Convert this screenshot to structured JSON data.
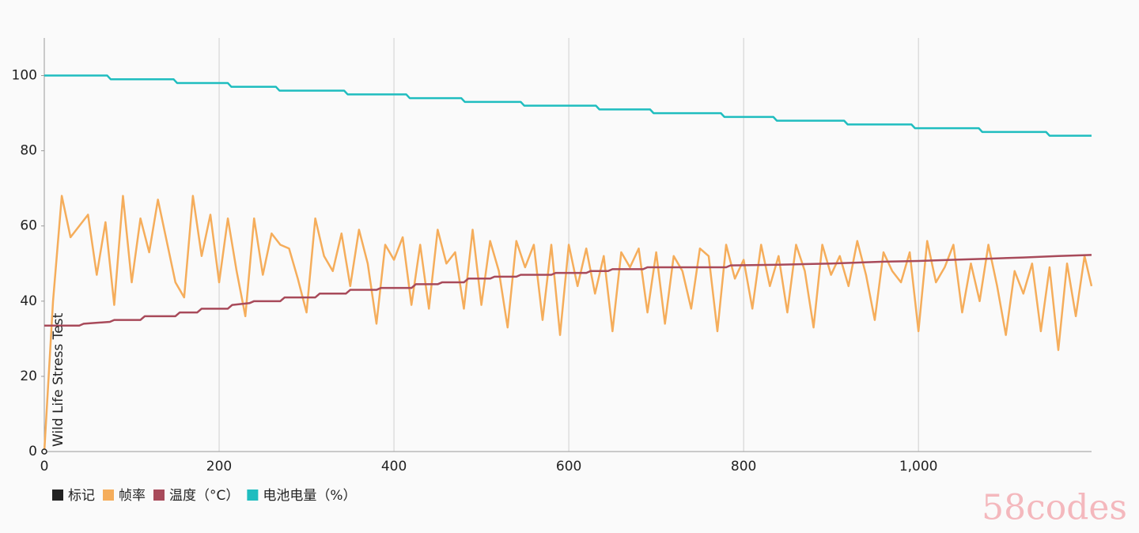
{
  "chart_data": {
    "type": "line",
    "xlim": [
      0,
      1198
    ],
    "ylim": [
      0,
      110
    ],
    "xticks": [
      0,
      200,
      400,
      600,
      800,
      {
        "value": 1000,
        "label": "1,000"
      }
    ],
    "yticks": [
      0,
      20,
      40,
      60,
      80,
      100
    ],
    "grid": "x",
    "legend": "bottom-left",
    "annotations": [
      {
        "x": 0,
        "y": 0,
        "text": "Wild Life Stress Test"
      }
    ],
    "watermark": "58codes",
    "series": [
      {
        "name": "标记",
        "color": "#222222",
        "x": [],
        "values": []
      },
      {
        "name": "帧率",
        "color": "#f5ad5b",
        "x": [
          0,
          10,
          20,
          30,
          40,
          50,
          60,
          70,
          80,
          90,
          100,
          110,
          120,
          130,
          140,
          150,
          160,
          170,
          180,
          190,
          200,
          210,
          220,
          230,
          240,
          250,
          260,
          270,
          280,
          290,
          300,
          310,
          320,
          330,
          340,
          350,
          360,
          370,
          380,
          390,
          400,
          410,
          420,
          430,
          440,
          450,
          460,
          470,
          480,
          490,
          500,
          510,
          520,
          530,
          540,
          550,
          560,
          570,
          580,
          590,
          600,
          610,
          620,
          630,
          640,
          650,
          660,
          670,
          680,
          690,
          700,
          710,
          720,
          730,
          740,
          750,
          760,
          770,
          780,
          790,
          800,
          810,
          820,
          830,
          840,
          850,
          860,
          870,
          880,
          890,
          900,
          910,
          920,
          930,
          940,
          950,
          960,
          970,
          980,
          990,
          1000,
          1010,
          1020,
          1030,
          1040,
          1050,
          1060,
          1070,
          1080,
          1090,
          1100,
          1110,
          1120,
          1130,
          1140,
          1150,
          1160,
          1170,
          1180,
          1190,
          1198
        ],
        "values": [
          0,
          40,
          68,
          57,
          60,
          63,
          47,
          61,
          39,
          68,
          45,
          62,
          53,
          67,
          56,
          45,
          41,
          68,
          52,
          63,
          45,
          62,
          48,
          36,
          62,
          47,
          58,
          55,
          54,
          46,
          37,
          62,
          52,
          48,
          58,
          44,
          59,
          50,
          34,
          55,
          51,
          57,
          39,
          55,
          38,
          59,
          50,
          53,
          38,
          59,
          39,
          56,
          48,
          33,
          56,
          49,
          55,
          35,
          55,
          31,
          55,
          44,
          54,
          42,
          52,
          32,
          53,
          49,
          54,
          37,
          53,
          34,
          52,
          48,
          38,
          54,
          52,
          32,
          55,
          46,
          51,
          38,
          55,
          44,
          52,
          37,
          55,
          48,
          33,
          55,
          47,
          52,
          44,
          56,
          47,
          35,
          53,
          48,
          45,
          53,
          32,
          56,
          45,
          49,
          55,
          37,
          50,
          40,
          55,
          44,
          31,
          48,
          42,
          50,
          32,
          49,
          27,
          50,
          36,
          52,
          44
        ]
      },
      {
        "name": "温度（°C）",
        "color": "#a84a5a",
        "x": [
          0,
          40,
          45,
          75,
          80,
          110,
          115,
          150,
          155,
          175,
          180,
          210,
          215,
          235,
          240,
          270,
          275,
          310,
          315,
          345,
          350,
          380,
          385,
          420,
          425,
          450,
          455,
          480,
          485,
          510,
          515,
          540,
          545,
          580,
          585,
          620,
          625,
          645,
          650,
          685,
          690,
          780,
          785,
          840,
          900,
          960,
          1000,
          1040,
          1080,
          1120,
          1160,
          1198
        ],
        "values": [
          33.5,
          33.5,
          34,
          34.5,
          35,
          35,
          36,
          36,
          37,
          37,
          38,
          38,
          39,
          39.5,
          40,
          40,
          41,
          41,
          42,
          42,
          43,
          43,
          43.5,
          43.5,
          44.5,
          44.5,
          45,
          45,
          46,
          46,
          46.5,
          46.5,
          47,
          47,
          47.5,
          47.5,
          48,
          48,
          48.5,
          48.5,
          49,
          49,
          49.5,
          49.7,
          50,
          50.5,
          50.7,
          51,
          51.3,
          51.6,
          52,
          52.3
        ]
      },
      {
        "name": "电池电量（%）",
        "color": "#1fbdbf",
        "x": [
          0,
          72,
          76,
          148,
          152,
          210,
          214,
          265,
          269,
          343,
          347,
          414,
          418,
          477,
          481,
          545,
          549,
          631,
          635,
          693,
          697,
          774,
          778,
          834,
          838,
          915,
          919,
          992,
          996,
          1069,
          1073,
          1146,
          1150,
          1198
        ],
        "values": [
          100,
          100,
          99,
          99,
          98,
          98,
          97,
          97,
          96,
          96,
          95,
          95,
          94,
          94,
          93,
          93,
          92,
          92,
          91,
          91,
          90,
          90,
          89,
          89,
          88,
          88,
          87,
          87,
          86,
          86,
          85,
          85,
          84,
          84
        ]
      }
    ]
  }
}
